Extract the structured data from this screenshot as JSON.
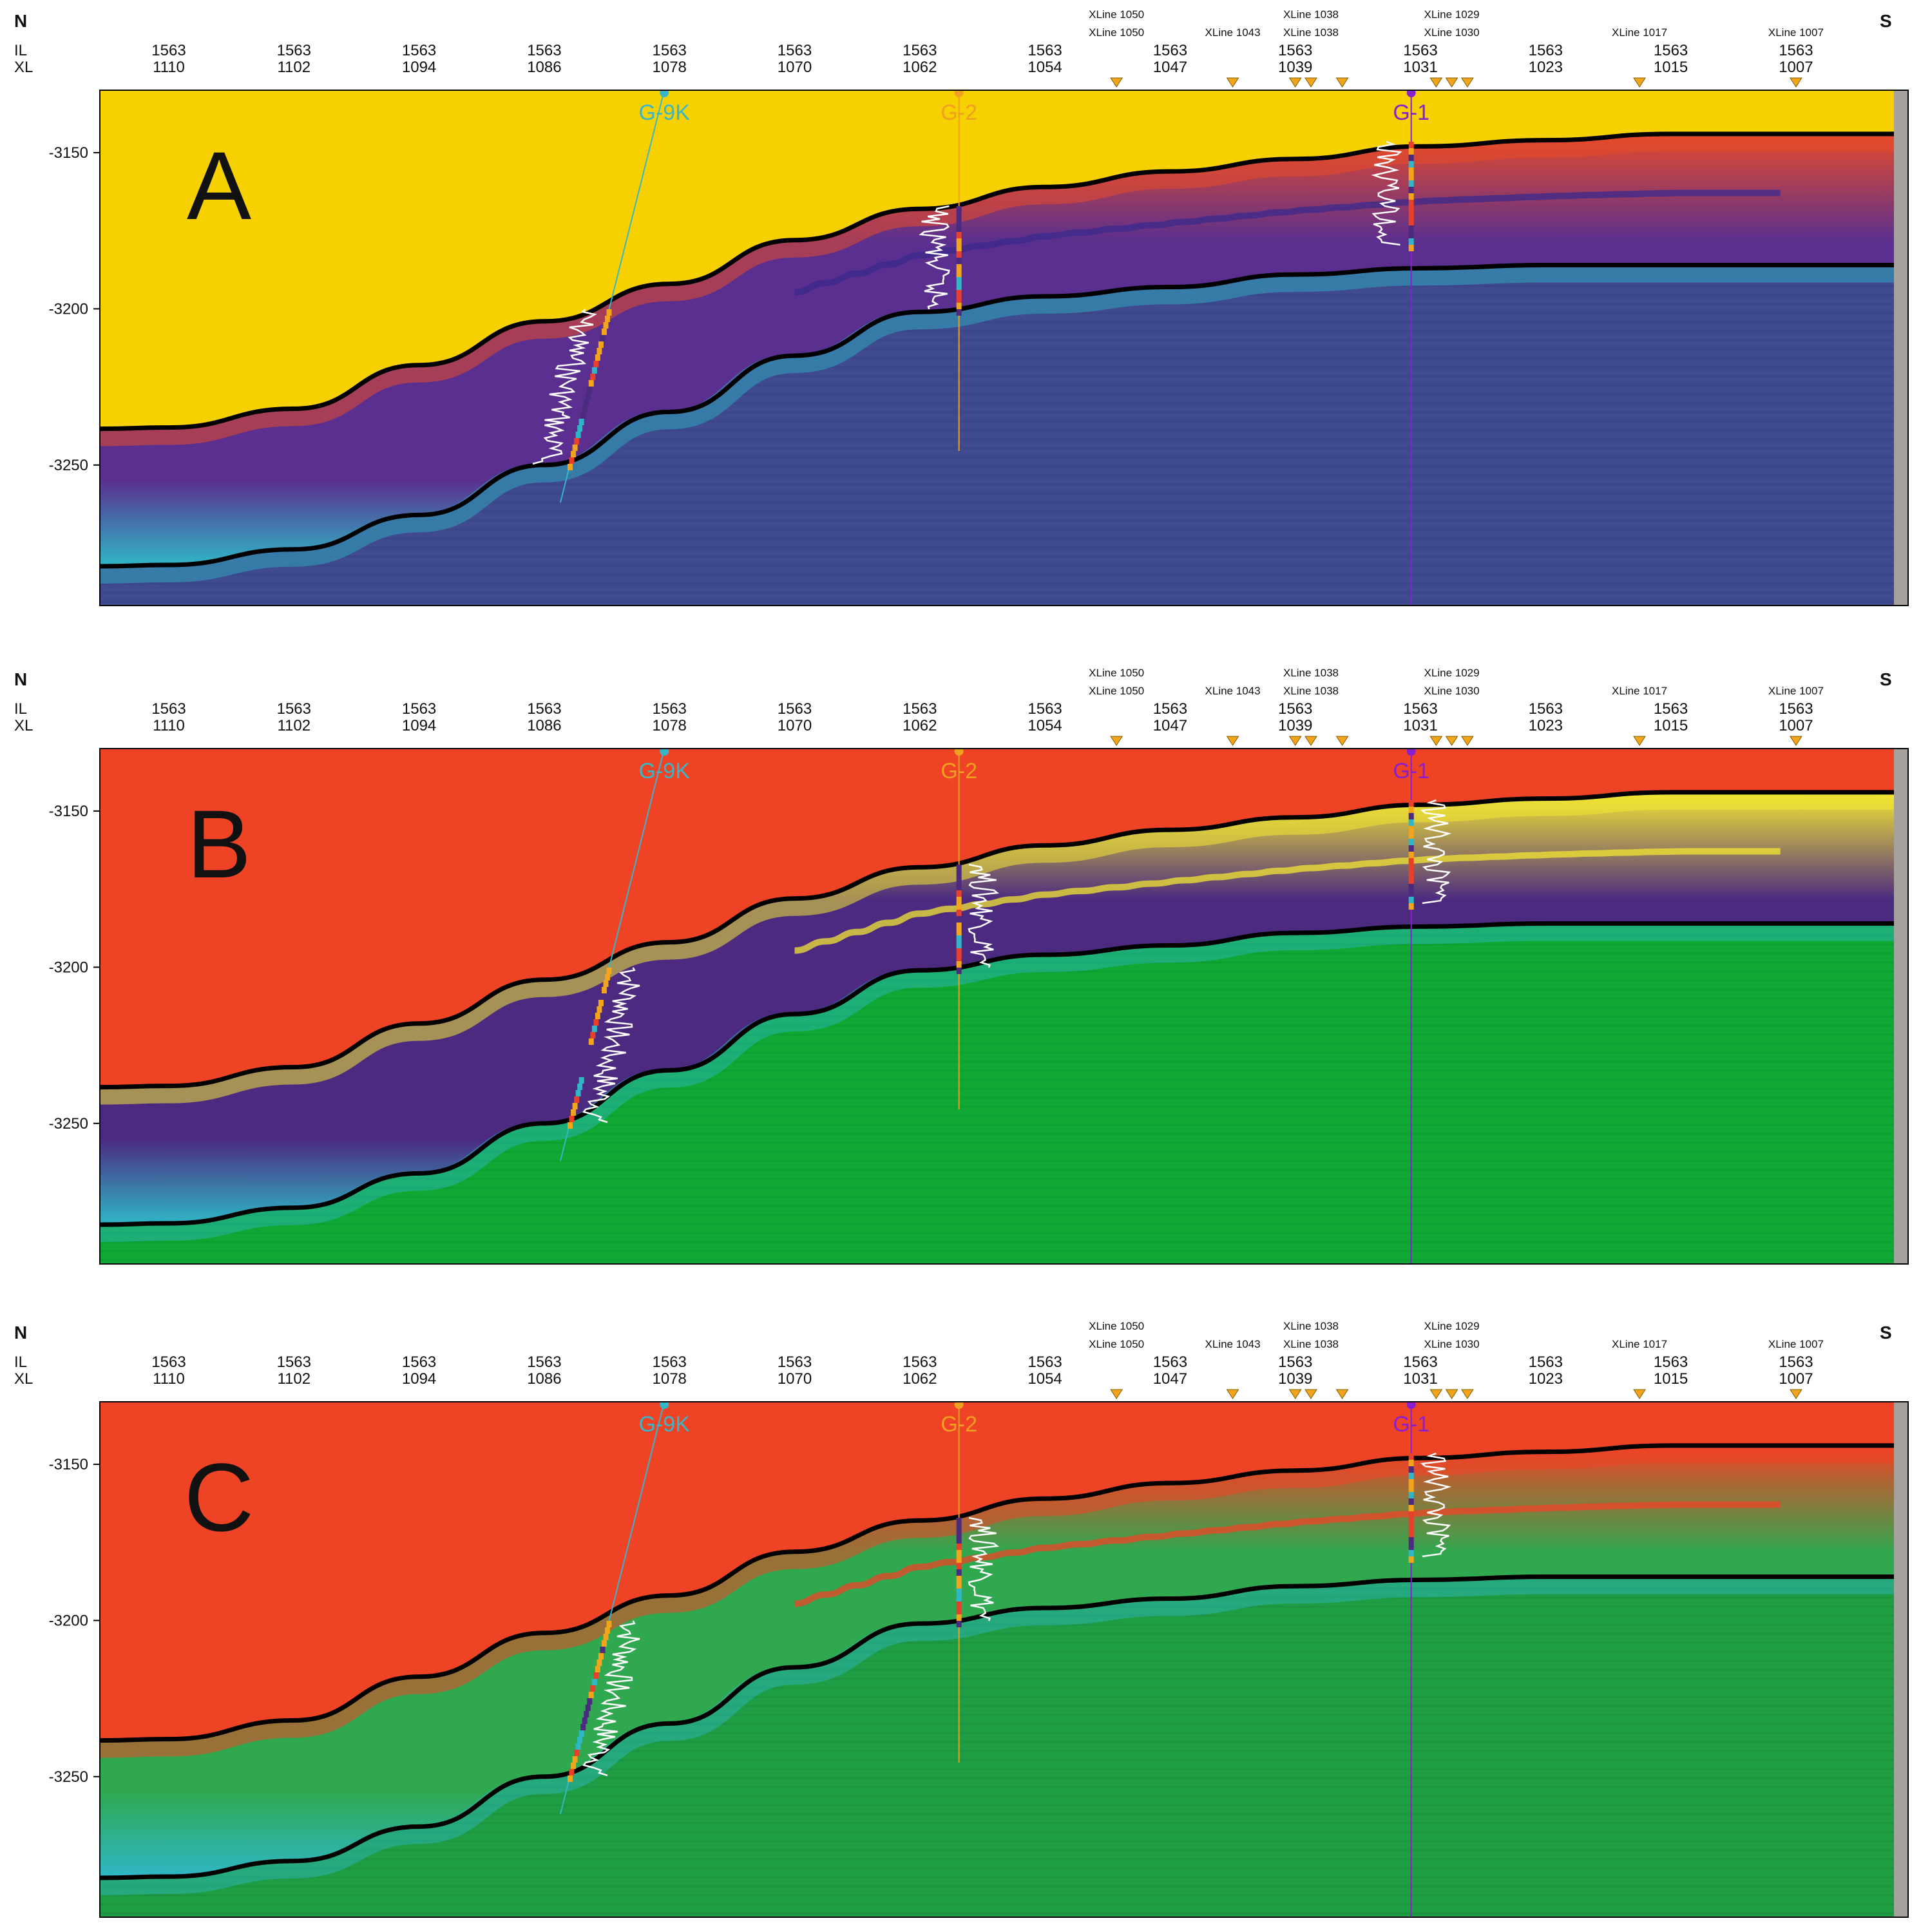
{
  "figure": {
    "compass": {
      "left": "N",
      "right": "S"
    },
    "axis_labels": {
      "il": "IL",
      "xl": "XL"
    },
    "il_value": "1563",
    "xl_ticks": [
      "1110",
      "1102",
      "1094",
      "1086",
      "1078",
      "1070",
      "1062",
      "1054",
      "1047",
      "1039",
      "1031",
      "1023",
      "1015",
      "1007"
    ],
    "xline_markers": [
      {
        "top": "XLine 1050",
        "bottom": "XLine 1050"
      },
      {
        "top": "",
        "bottom": "XLine 1043"
      },
      {
        "top": "XLine 1038",
        "bottom": "XLine 1038"
      },
      {
        "top": "XLine 1029",
        "bottom": "XLine 1030"
      },
      {
        "top": "",
        "bottom": "XLine 1017"
      },
      {
        "top": "",
        "bottom": "XLine 1007"
      }
    ],
    "depth_ticks": [
      "-3150",
      "-3200",
      "-3250"
    ],
    "depth_range": [
      -3130,
      -3295
    ],
    "wells": [
      {
        "name": "G-9K",
        "color": "#35b7c9"
      },
      {
        "name": "G-2",
        "color": "#f0a020"
      },
      {
        "name": "G-1",
        "color": "#8a1fd0"
      }
    ],
    "horizons": {
      "top": [
        [
          1110,
          -3238
        ],
        [
          1102,
          -3232
        ],
        [
          1094,
          -3218
        ],
        [
          1086,
          -3204
        ],
        [
          1078,
          -3192
        ],
        [
          1070,
          -3178
        ],
        [
          1062,
          -3168
        ],
        [
          1054,
          -3161
        ],
        [
          1047,
          -3156
        ],
        [
          1039,
          -3152
        ],
        [
          1031,
          -3148
        ],
        [
          1023,
          -3146
        ],
        [
          1015,
          -3144
        ],
        [
          1007,
          -3144
        ]
      ],
      "bottom": [
        [
          1110,
          -3282
        ],
        [
          1102,
          -3277
        ],
        [
          1094,
          -3266
        ],
        [
          1086,
          -3250
        ],
        [
          1078,
          -3233
        ],
        [
          1070,
          -3215
        ],
        [
          1062,
          -3201
        ],
        [
          1054,
          -3196
        ],
        [
          1047,
          -3193
        ],
        [
          1039,
          -3189
        ],
        [
          1031,
          -3187
        ],
        [
          1023,
          -3186
        ],
        [
          1015,
          -3186
        ],
        [
          1007,
          -3186
        ]
      ]
    }
  },
  "panels": [
    {
      "letter": "A",
      "above_color": "#f7d000",
      "band_color": "#5a2f8f",
      "below_color": "#3f4a8f",
      "accent_color": "#e54a2a"
    },
    {
      "letter": "B",
      "above_color": "#ef4326",
      "band_color": "#4b2a80",
      "below_color": "#0fa834",
      "accent_color": "#f2e633"
    },
    {
      "letter": "C",
      "above_color": "#ef4326",
      "band_color": "#2fa850",
      "below_color": "#1f9d44",
      "accent_color": "#ef4326"
    }
  ]
}
